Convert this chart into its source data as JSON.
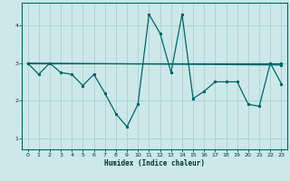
{
  "title": "",
  "xlabel": "Humidex (Indice chaleur)",
  "bg_color": "#cce8e8",
  "grid_color": "#aacfcf",
  "line_color": "#006666",
  "xlim": [
    -0.5,
    23.5
  ],
  "ylim": [
    0.7,
    4.6
  ],
  "xticks": [
    0,
    1,
    2,
    3,
    4,
    5,
    6,
    7,
    8,
    9,
    10,
    11,
    12,
    13,
    14,
    15,
    16,
    17,
    18,
    19,
    20,
    21,
    22,
    23
  ],
  "yticks": [
    1,
    2,
    3,
    4
  ],
  "series1": [
    [
      0,
      3.0
    ],
    [
      1,
      2.7
    ],
    [
      2,
      3.0
    ],
    [
      3,
      2.75
    ],
    [
      4,
      2.7
    ],
    [
      5,
      2.4
    ],
    [
      6,
      2.7
    ],
    [
      7,
      2.2
    ],
    [
      8,
      1.65
    ],
    [
      9,
      1.3
    ],
    [
      10,
      1.9
    ],
    [
      11,
      4.3
    ],
    [
      12,
      3.8
    ],
    [
      13,
      2.75
    ],
    [
      14,
      4.3
    ],
    [
      15,
      2.05
    ],
    [
      16,
      2.25
    ],
    [
      17,
      2.5
    ],
    [
      18,
      2.5
    ],
    [
      19,
      2.5
    ],
    [
      20,
      1.9
    ],
    [
      21,
      1.85
    ],
    [
      22,
      3.0
    ],
    [
      23,
      2.45
    ]
  ],
  "series2": [
    [
      0,
      3.0
    ],
    [
      22,
      3.0
    ],
    [
      23,
      3.0
    ]
  ],
  "series3": [
    [
      0,
      3.0
    ],
    [
      23,
      2.95
    ]
  ]
}
